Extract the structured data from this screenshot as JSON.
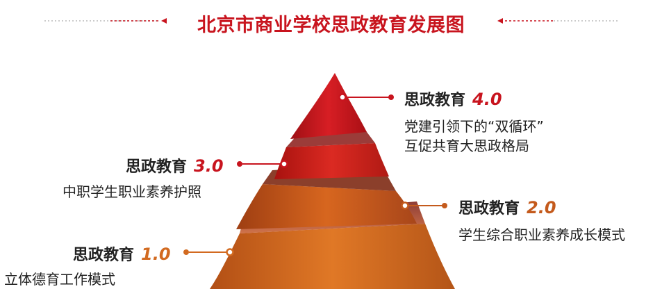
{
  "title": "北京市商业学校思政教育发展图",
  "colors": {
    "accent": "#C8141E",
    "level4": "#C0141A",
    "level3": "#D11A1F",
    "level2": "#C45A1C",
    "level1": "#D26A20"
  },
  "levels": [
    {
      "prefix": "思政教育",
      "version": "4.0",
      "desc_line1": "党建引领下的“双循环”",
      "desc_line2": "互促共育大思政格局"
    },
    {
      "prefix": "思政教育",
      "version": "3.0",
      "desc_line1": "中职学生职业素养护照"
    },
    {
      "prefix": "思政教育",
      "version": "2.0",
      "desc_line1": "学生综合职业素养成长模式"
    },
    {
      "prefix": "思政教育",
      "version": "1.0",
      "desc_line1": "立体德育工作模式"
    }
  ]
}
